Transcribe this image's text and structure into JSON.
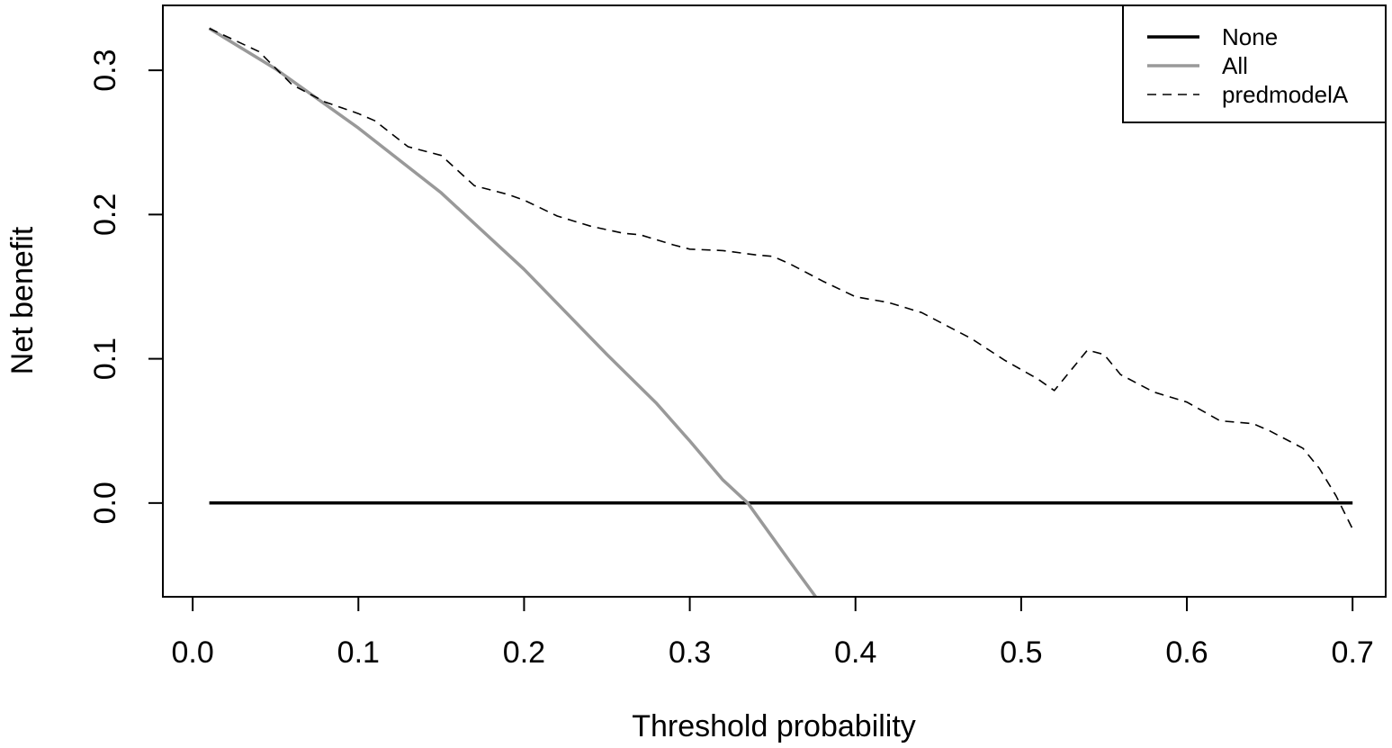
{
  "chart_data": {
    "type": "line",
    "title": "",
    "xlabel": "Threshold probability",
    "ylabel": "Net benefit",
    "xlim": [
      -0.018,
      0.72
    ],
    "ylim": [
      -0.065,
      0.345
    ],
    "x_ticks": [
      {
        "value": 0.0,
        "label": "0.0"
      },
      {
        "value": 0.1,
        "label": "0.1"
      },
      {
        "value": 0.2,
        "label": "0.2"
      },
      {
        "value": 0.3,
        "label": "0.3"
      },
      {
        "value": 0.4,
        "label": "0.4"
      },
      {
        "value": 0.5,
        "label": "0.5"
      },
      {
        "value": 0.6,
        "label": "0.6"
      },
      {
        "value": 0.7,
        "label": "0.7"
      }
    ],
    "y_ticks": [
      {
        "value": 0.0,
        "label": "0.0"
      },
      {
        "value": 0.1,
        "label": "0.1"
      },
      {
        "value": 0.2,
        "label": "0.2"
      },
      {
        "value": 0.3,
        "label": "0.3"
      }
    ],
    "grid": false,
    "legend_position": "top-right",
    "series": [
      {
        "name": "None",
        "color": "#000000",
        "style": "solid",
        "x": [
          0.01,
          0.7
        ],
        "y": [
          0.0,
          0.0
        ]
      },
      {
        "name": "All",
        "color": "#999999",
        "style": "solid",
        "x": [
          0.01,
          0.05,
          0.1,
          0.15,
          0.2,
          0.25,
          0.28,
          0.3,
          0.32,
          0.335,
          0.35,
          0.36,
          0.376
        ],
        "y": [
          0.329,
          0.301,
          0.26,
          0.215,
          0.162,
          0.103,
          0.069,
          0.043,
          0.016,
          0.0,
          -0.024,
          -0.04,
          -0.065
        ]
      },
      {
        "name": "predmodelA",
        "color": "#000000",
        "style": "dashed",
        "x": [
          0.01,
          0.04,
          0.06,
          0.08,
          0.1,
          0.11,
          0.13,
          0.15,
          0.17,
          0.19,
          0.2,
          0.22,
          0.24,
          0.26,
          0.27,
          0.29,
          0.3,
          0.32,
          0.34,
          0.35,
          0.36,
          0.38,
          0.4,
          0.42,
          0.44,
          0.47,
          0.49,
          0.51,
          0.52,
          0.53,
          0.54,
          0.55,
          0.56,
          0.58,
          0.6,
          0.62,
          0.64,
          0.65,
          0.67,
          0.68,
          0.69,
          0.7
        ],
        "y": [
          0.329,
          0.313,
          0.29,
          0.278,
          0.27,
          0.265,
          0.247,
          0.241,
          0.22,
          0.214,
          0.21,
          0.199,
          0.192,
          0.187,
          0.186,
          0.179,
          0.176,
          0.175,
          0.172,
          0.171,
          0.166,
          0.154,
          0.143,
          0.139,
          0.132,
          0.114,
          0.099,
          0.086,
          0.078,
          0.092,
          0.106,
          0.103,
          0.089,
          0.077,
          0.07,
          0.057,
          0.055,
          0.05,
          0.038,
          0.024,
          0.005,
          -0.018
        ]
      }
    ]
  }
}
